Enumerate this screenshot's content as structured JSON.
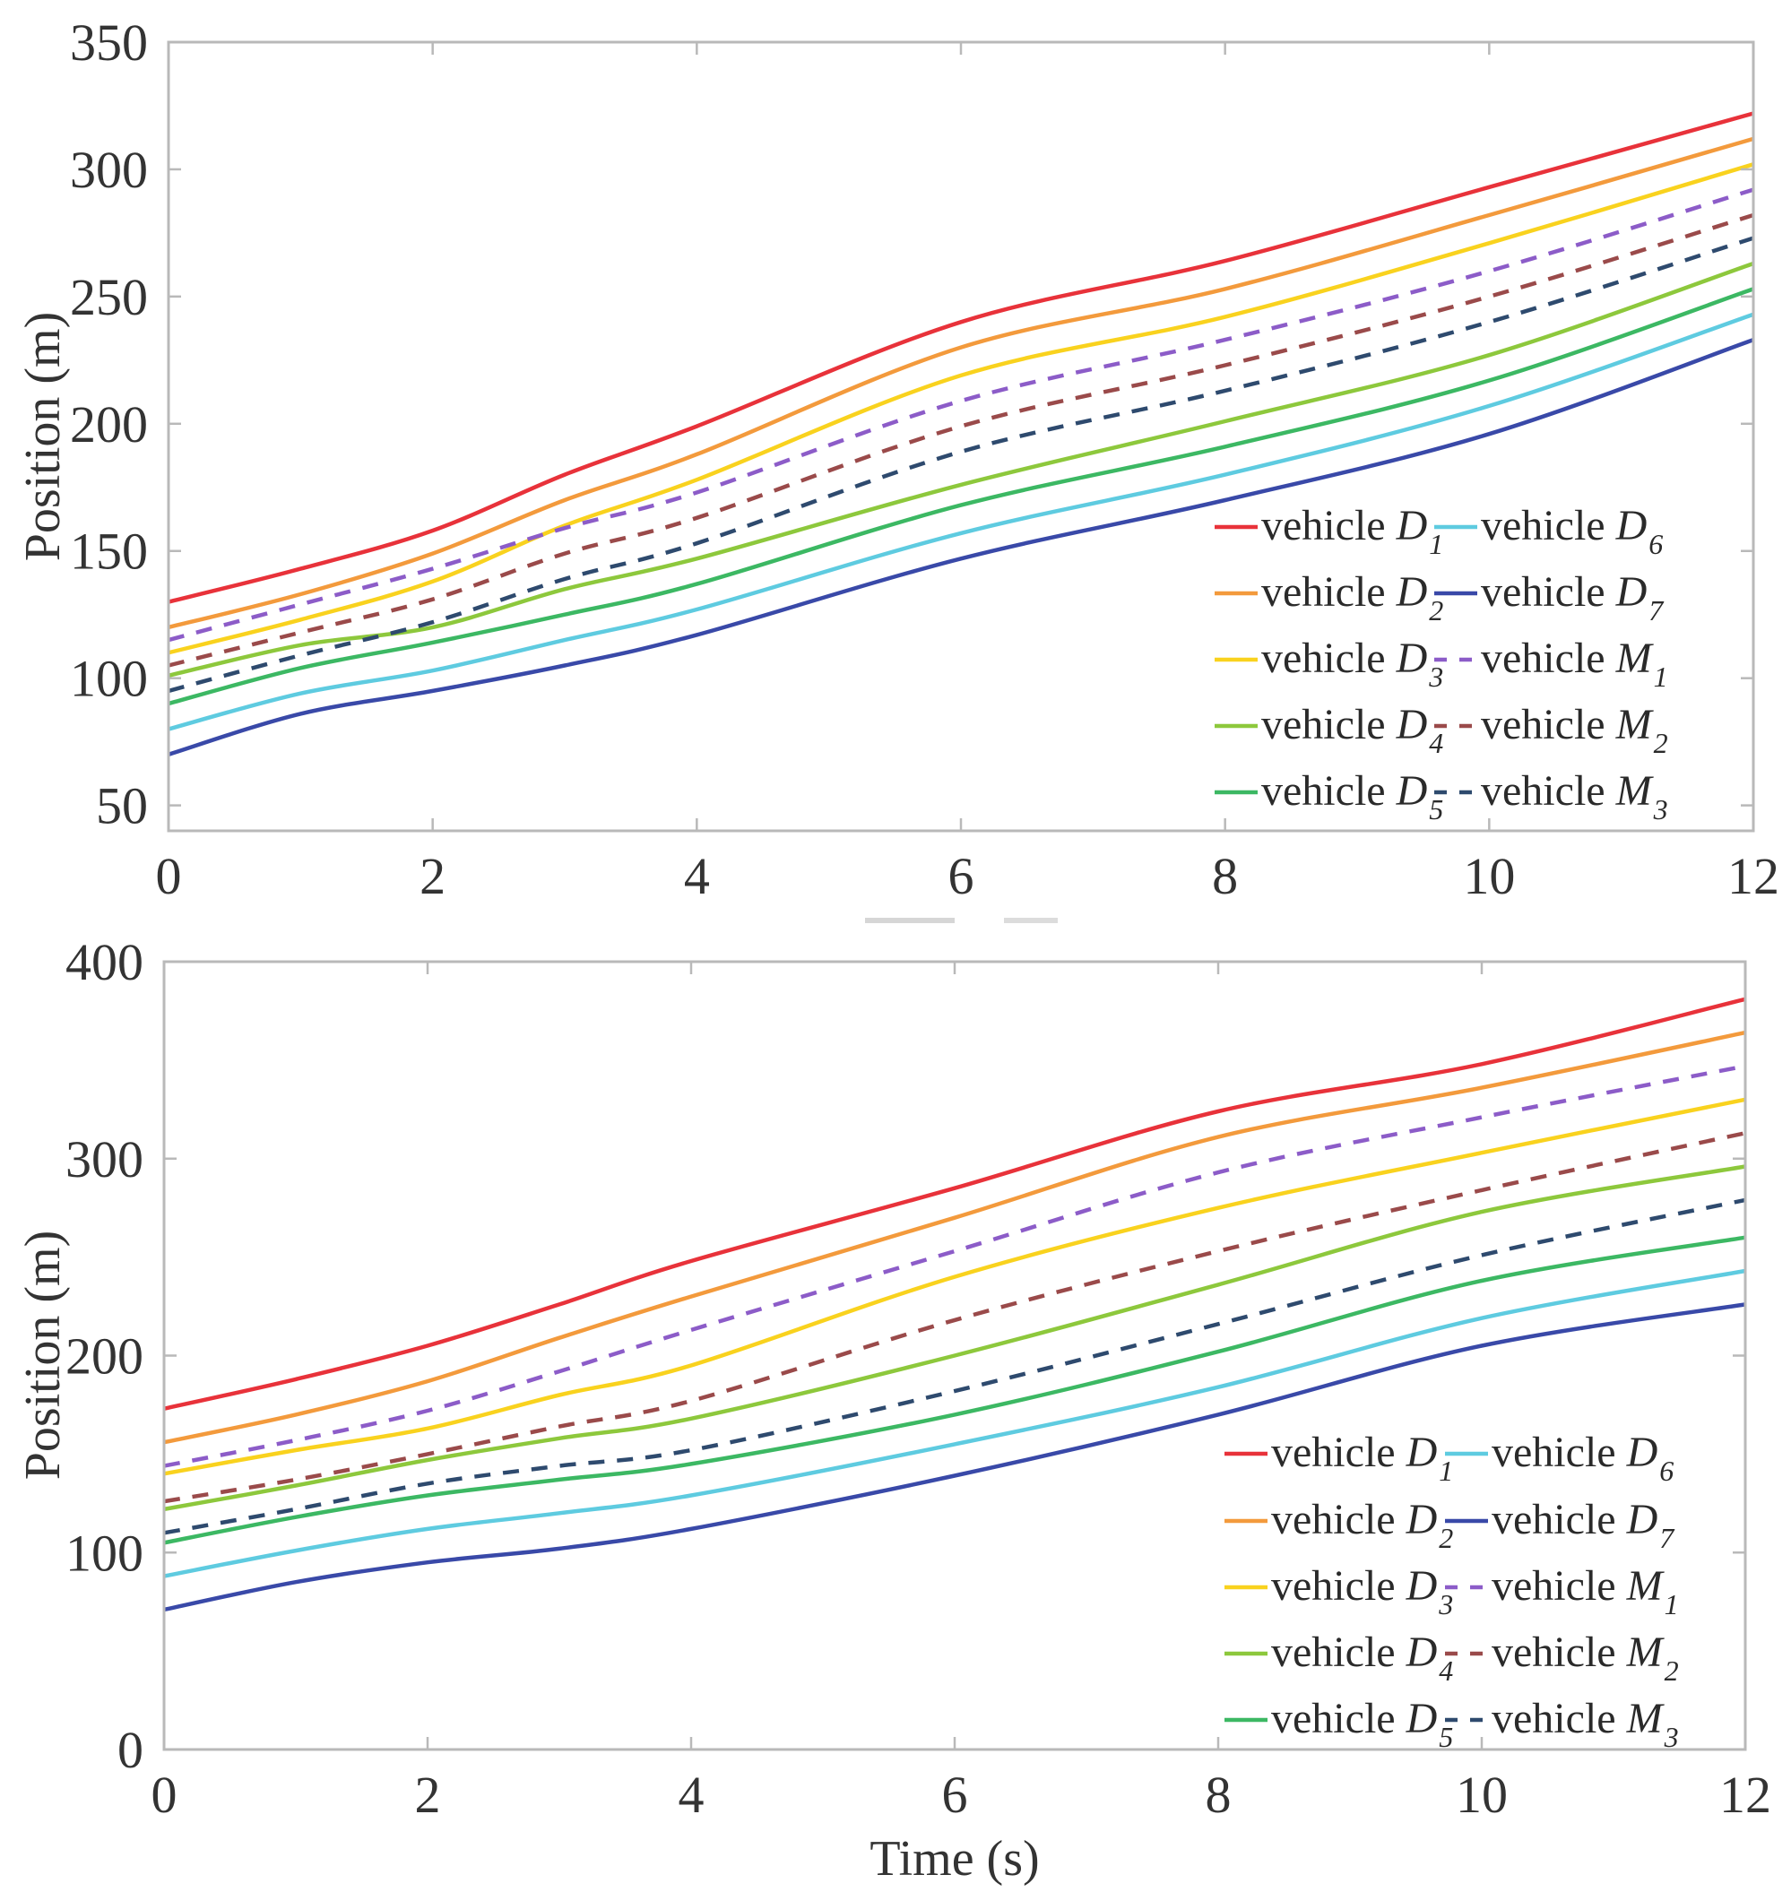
{
  "chart_data": [
    {
      "type": "line",
      "title": "",
      "xlabel": "",
      "ylabel": "Position (m)",
      "xlim": [
        0,
        12
      ],
      "ylim": [
        40,
        350
      ],
      "xticks": [
        0,
        2,
        4,
        6,
        8,
        10,
        12
      ],
      "xtick_labels": [
        "0",
        "2",
        "4",
        "6",
        "8",
        "10",
        "12"
      ],
      "yticks": [
        50,
        100,
        150,
        200,
        250,
        300,
        350
      ],
      "ytick_labels": [
        "50",
        "100",
        "150",
        "200",
        "250",
        "300",
        "350"
      ],
      "grid": false,
      "legend_position": "bottom-right",
      "legend_columns": 2,
      "x": [
        0,
        1,
        2,
        3,
        4,
        6,
        8,
        10,
        12
      ],
      "series": [
        {
          "name": "vehicle D1",
          "label": "vehicle ",
          "symbol": "D",
          "sub": "1",
          "color": "#e8323a",
          "style": "solid",
          "values": [
            130,
            143,
            158,
            180,
            199,
            240,
            264,
            293,
            322
          ]
        },
        {
          "name": "vehicle D2",
          "label": "vehicle ",
          "symbol": "D",
          "sub": "2",
          "color": "#f39a3c",
          "style": "solid",
          "values": [
            120,
            133,
            149,
            170,
            188,
            230,
            253,
            282,
            312
          ]
        },
        {
          "name": "vehicle D3",
          "label": "vehicle ",
          "symbol": "D",
          "sub": "3",
          "color": "#f9d21e",
          "style": "solid",
          "values": [
            110,
            123,
            138,
            160,
            178,
            219,
            242,
            271,
            302
          ]
        },
        {
          "name": "vehicle D4",
          "label": "vehicle ",
          "symbol": "D",
          "sub": "4",
          "color": "#8dc83c",
          "style": "solid",
          "values": [
            101,
            113,
            120,
            135,
            147,
            176,
            201,
            227,
            263
          ]
        },
        {
          "name": "vehicle D5",
          "label": "vehicle ",
          "symbol": "D",
          "sub": "5",
          "color": "#3cb863",
          "style": "solid",
          "values": [
            90,
            104,
            114,
            125,
            137,
            168,
            191,
            217,
            253
          ]
        },
        {
          "name": "vehicle D6",
          "label": "vehicle ",
          "symbol": "D",
          "sub": "6",
          "color": "#5ecbe0",
          "style": "solid",
          "values": [
            80,
            94,
            103,
            115,
            127,
            157,
            180,
            207,
            243
          ]
        },
        {
          "name": "vehicle D7",
          "label": "vehicle ",
          "symbol": "D",
          "sub": "7",
          "color": "#3949a8",
          "style": "solid",
          "values": [
            70,
            86,
            95,
            105,
            117,
            147,
            170,
            196,
            233
          ]
        },
        {
          "name": "vehicle M1",
          "label": "vehicle ",
          "symbol": "M",
          "sub": "1",
          "color": "#8c5cc8",
          "style": "dashed",
          "values": [
            115,
            129,
            143,
            159,
            173,
            209,
            233,
            260,
            292
          ]
        },
        {
          "name": "vehicle M2",
          "label": "vehicle ",
          "symbol": "M",
          "sub": "2",
          "color": "#9a4a4a",
          "style": "dashed",
          "values": [
            105,
            118,
            131,
            149,
            163,
            199,
            223,
            250,
            282
          ]
        },
        {
          "name": "vehicle M3",
          "label": "vehicle ",
          "symbol": "M",
          "sub": "3",
          "color": "#2e4a6e",
          "style": "dashed",
          "values": [
            95,
            109,
            122,
            139,
            153,
            189,
            213,
            240,
            273
          ]
        }
      ]
    },
    {
      "type": "line",
      "title": "",
      "xlabel": "Time (s)",
      "ylabel": "Position (m)",
      "xlim": [
        0,
        12
      ],
      "ylim": [
        0,
        400
      ],
      "xticks": [
        0,
        2,
        4,
        6,
        8,
        10,
        12
      ],
      "xtick_labels": [
        "0",
        "2",
        "4",
        "6",
        "8",
        "10",
        "12"
      ],
      "yticks": [
        0,
        100,
        200,
        300,
        400
      ],
      "ytick_labels": [
        "0",
        "100",
        "200",
        "300",
        "400"
      ],
      "grid": false,
      "legend_position": "bottom-right",
      "legend_columns": 2,
      "x": [
        0,
        1,
        2,
        3,
        4,
        6,
        8,
        10,
        12
      ],
      "series": [
        {
          "name": "vehicle D1",
          "label": "vehicle ",
          "symbol": "D",
          "sub": "1",
          "color": "#e8323a",
          "style": "solid",
          "values": [
            173,
            188,
            205,
            226,
            248,
            285,
            324,
            348,
            381
          ]
        },
        {
          "name": "vehicle D2",
          "label": "vehicle ",
          "symbol": "D",
          "sub": "2",
          "color": "#f39a3c",
          "style": "solid",
          "values": [
            156,
            170,
            187,
            209,
            230,
            270,
            311,
            336,
            364
          ]
        },
        {
          "name": "vehicle D3",
          "label": "vehicle ",
          "symbol": "D",
          "sub": "3",
          "color": "#f9d21e",
          "style": "solid",
          "values": [
            140,
            152,
            163,
            180,
            195,
            240,
            275,
            303,
            330
          ]
        },
        {
          "name": "vehicle D4",
          "label": "vehicle ",
          "symbol": "D",
          "sub": "4",
          "color": "#8dc83c",
          "style": "solid",
          "values": [
            122,
            134,
            147,
            158,
            168,
            200,
            236,
            273,
            296
          ]
        },
        {
          "name": "vehicle D5",
          "label": "vehicle ",
          "symbol": "D",
          "sub": "5",
          "color": "#3cb863",
          "style": "solid",
          "values": [
            105,
            118,
            129,
            137,
            145,
            170,
            202,
            238,
            260
          ]
        },
        {
          "name": "vehicle D6",
          "label": "vehicle ",
          "symbol": "D",
          "sub": "6",
          "color": "#5ecbe0",
          "style": "solid",
          "values": [
            88,
            101,
            112,
            120,
            129,
            155,
            184,
            219,
            243
          ]
        },
        {
          "name": "vehicle D7",
          "label": "vehicle ",
          "symbol": "D",
          "sub": "7",
          "color": "#3949a8",
          "style": "solid",
          "values": [
            71,
            85,
            95,
            102,
            112,
            139,
            170,
            205,
            226
          ]
        },
        {
          "name": "vehicle M1",
          "label": "vehicle ",
          "symbol": "M",
          "sub": "1",
          "color": "#8c5cc8",
          "style": "dashed",
          "values": [
            144,
            157,
            172,
            192,
            213,
            253,
            293,
            321,
            347
          ]
        },
        {
          "name": "vehicle M2",
          "label": "vehicle ",
          "symbol": "M",
          "sub": "2",
          "color": "#9a4a4a",
          "style": "dashed",
          "values": [
            126,
            137,
            150,
            164,
            177,
            218,
            253,
            284,
            313
          ]
        },
        {
          "name": "vehicle M3",
          "label": "vehicle ",
          "symbol": "M",
          "sub": "3",
          "color": "#2e4a6e",
          "style": "dashed",
          "values": [
            110,
            122,
            135,
            144,
            152,
            182,
            216,
            251,
            279
          ]
        }
      ]
    }
  ]
}
